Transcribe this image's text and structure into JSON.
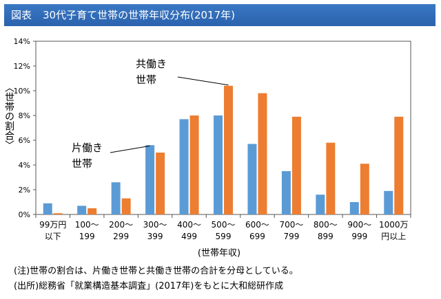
{
  "header": {
    "label": "図表",
    "title": "30代子育て世帯の世帯年収分布(2017年)"
  },
  "chart_data": {
    "type": "bar",
    "title": "30代子育て世帯の世帯年収分布(2017年)",
    "ylabel": "〈世帯の割合〉",
    "xlabel": "(世帯年収)",
    "ylim": [
      0,
      14
    ],
    "yticks": [
      "0%",
      "2%",
      "4%",
      "6%",
      "8%",
      "10%",
      "12%",
      "14%"
    ],
    "categories": [
      [
        "99万円",
        "以下"
      ],
      [
        "100～",
        "199"
      ],
      [
        "200～",
        "299"
      ],
      [
        "300～",
        "399"
      ],
      [
        "400～",
        "499"
      ],
      [
        "500～",
        "599"
      ],
      [
        "600～",
        "699"
      ],
      [
        "700～",
        "799"
      ],
      [
        "800～",
        "899"
      ],
      [
        "900～",
        "999"
      ],
      [
        "1000万",
        "円以上"
      ]
    ],
    "series": [
      {
        "name": "片働き世帯",
        "label_lines": [
          "片働き",
          "世帯"
        ],
        "color": "#5b9bd5",
        "values": [
          0.9,
          0.7,
          2.6,
          5.6,
          7.7,
          8.0,
          5.7,
          3.5,
          1.6,
          1.0,
          1.9
        ]
      },
      {
        "name": "共働き世帯",
        "label_lines": [
          "共働き",
          "世帯"
        ],
        "color": "#ed7d31",
        "values": [
          0.1,
          0.5,
          1.3,
          5.0,
          8.0,
          10.4,
          9.8,
          7.9,
          5.8,
          4.1,
          7.9
        ]
      }
    ],
    "grid": false,
    "legend": "annotations"
  },
  "notes": [
    "(注)世帯の割合は、片働き世帯と共働き世帯の合計を分母としている。",
    "(出所)総務省「就業構造基本調査」(2017年)をもとに大和総研作成"
  ]
}
